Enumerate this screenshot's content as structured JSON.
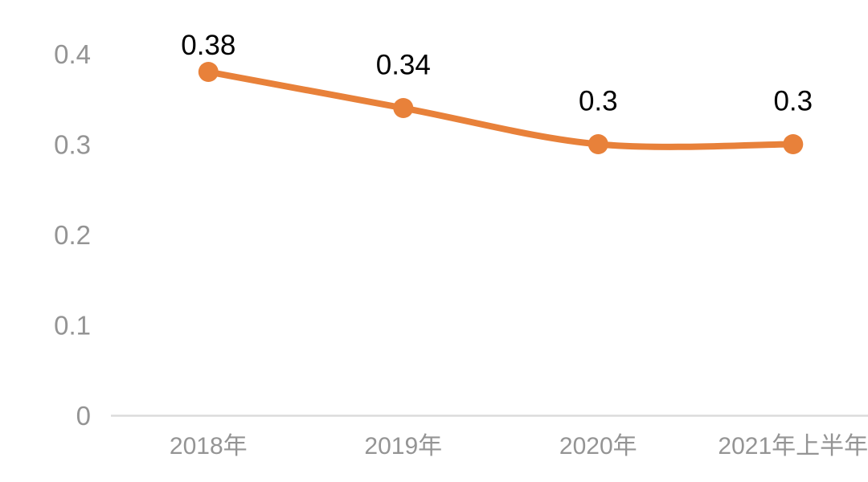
{
  "chart_data": {
    "type": "line",
    "title": "",
    "xlabel": "",
    "ylabel": "",
    "categories": [
      "2018年",
      "2019年",
      "2020年",
      "2021年上半年"
    ],
    "series": [
      {
        "name": "value",
        "values": [
          0.38,
          0.34,
          0.3,
          0.3
        ],
        "point_labels": [
          "0.38",
          "0.34",
          "0.3",
          "0.3"
        ]
      }
    ],
    "y_ticks": [
      {
        "value": 0.4,
        "label": "0.4"
      },
      {
        "value": 0.3,
        "label": "0.3"
      },
      {
        "value": 0.2,
        "label": "0.2"
      },
      {
        "value": 0.1,
        "label": "0.1"
      },
      {
        "value": 0.0,
        "label": "0"
      }
    ],
    "ylim": [
      0,
      0.4
    ],
    "smooth": true,
    "grid": false,
    "legend_visible": false,
    "colors": {
      "line": "#e8813a",
      "marker": "#e8813a",
      "data_label": "#000000",
      "axis_text": "#949494",
      "axis_line": "#dcdcdc",
      "background": "#ffffff"
    }
  }
}
